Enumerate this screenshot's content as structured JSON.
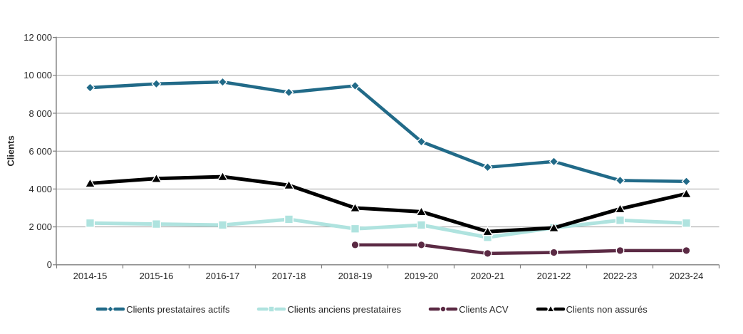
{
  "chart_data": {
    "type": "line",
    "title": "",
    "ylabel": "Clients",
    "xlabel": "",
    "categories": [
      "2014-15",
      "2015-16",
      "2016-17",
      "2017-18",
      "2018-19",
      "2019-20",
      "2020-21",
      "2021-22",
      "2022-23",
      "2023-24"
    ],
    "series": [
      {
        "name": "Clients prestataires actifs",
        "color": "#216A88",
        "marker": "diamond",
        "line_width": 4.5,
        "values": [
          9350,
          9550,
          9650,
          9100,
          9450,
          6500,
          5150,
          5450,
          4450,
          4400
        ]
      },
      {
        "name": "Clients anciens prestataires",
        "color": "#AFE3DF",
        "marker": "square",
        "line_width": 5,
        "values": [
          2200,
          2150,
          2100,
          2400,
          1900,
          2100,
          1450,
          1950,
          2350,
          2200
        ]
      },
      {
        "name": "Clients ACV",
        "color": "#5B2A44",
        "marker": "circle",
        "line_width": 4.5,
        "values": [
          null,
          null,
          null,
          null,
          1050,
          1050,
          600,
          650,
          750,
          750
        ]
      },
      {
        "name": "Clients non assurés",
        "color": "#000000",
        "marker": "triangle",
        "line_width": 5,
        "values": [
          4300,
          4550,
          4650,
          4200,
          3000,
          2800,
          1750,
          1950,
          2950,
          3750
        ]
      }
    ],
    "ylim": [
      0,
      12000
    ],
    "ytick_step": 2000,
    "ytick_labels": [
      "0",
      "2 000",
      "4 000",
      "6 000",
      "8 000",
      "10 000",
      "12 000"
    ],
    "grid": true,
    "legend_position": "bottom"
  },
  "style": {
    "gridline_color": "#A3A3A3",
    "axis_color": "#7F7F7F",
    "text_color": "#262626",
    "background": "#ffffff",
    "marker_outline": "#ffffff"
  }
}
